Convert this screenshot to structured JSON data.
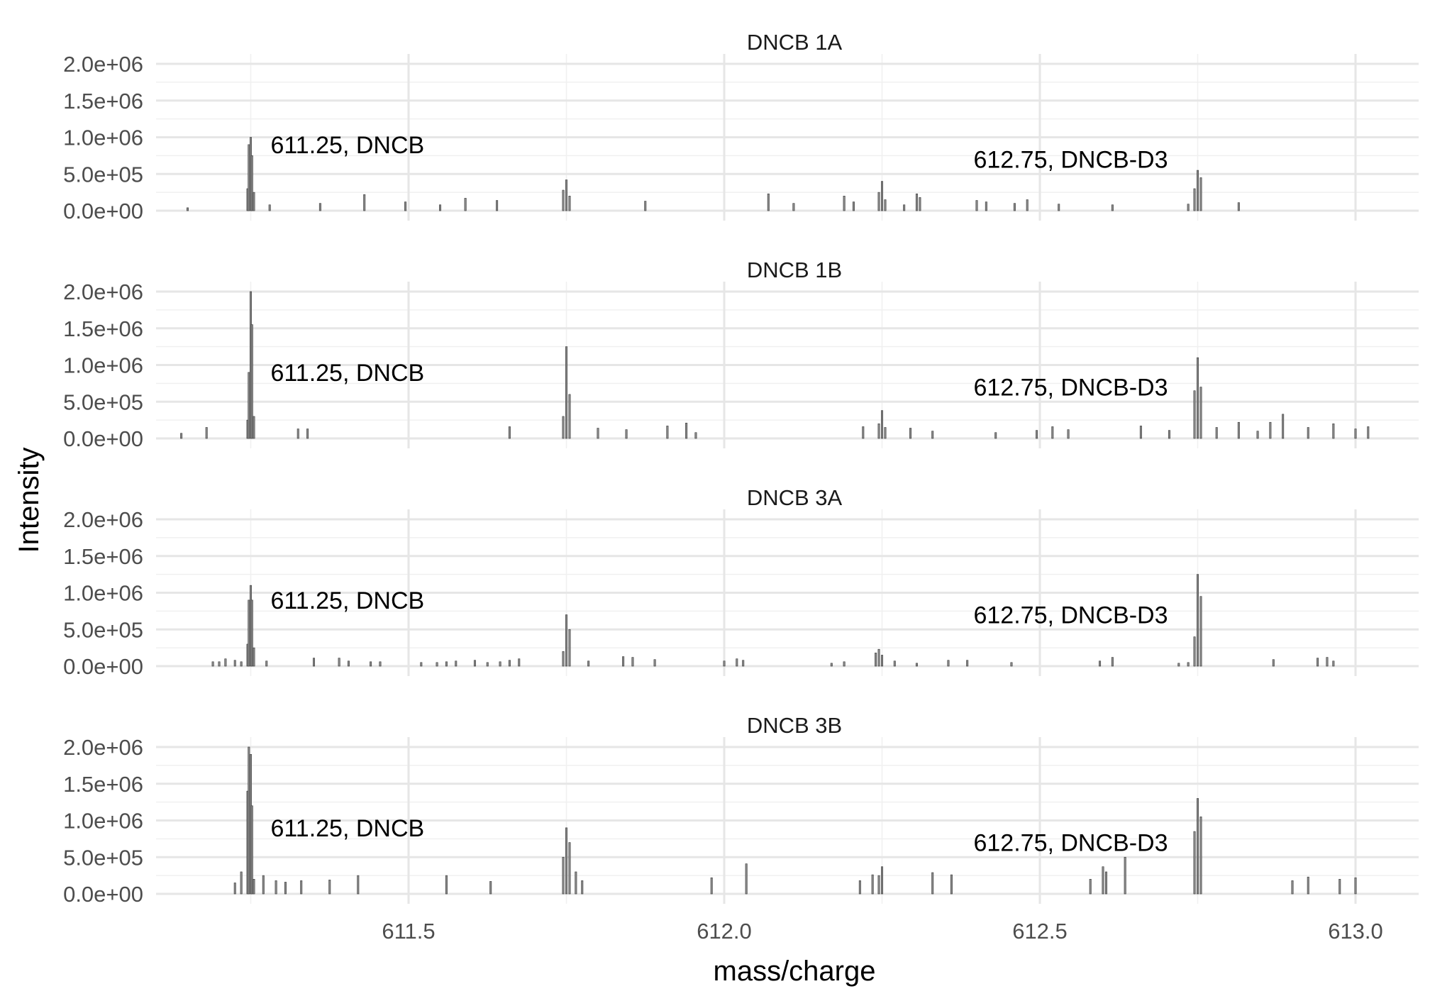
{
  "chart_data": {
    "type": "bar",
    "xlabel": "mass/charge",
    "ylabel": "Intensity",
    "xlim": [
      611.1,
      613.1
    ],
    "ylim": [
      0,
      2000000
    ],
    "x_ticks": [
      611.5,
      612.0,
      612.5,
      613.0
    ],
    "x_tick_labels": [
      "611.5",
      "612.0",
      "612.5",
      "613.0"
    ],
    "y_ticks": [
      0,
      500000,
      1000000,
      1500000,
      2000000
    ],
    "y_tick_labels": [
      "0.0e+00",
      "5.0e+05",
      "1.0e+06",
      "1.5e+06",
      "2.0e+06"
    ],
    "grid": true,
    "annotations": [
      {
        "text": "611.25, DNCB",
        "x": 611.25,
        "y": 900000
      },
      {
        "text": "612.75, DNCB-D3",
        "x": 612.75,
        "y": 700000
      }
    ],
    "panels": [
      {
        "name": "DNCB 1A",
        "x": [
          611.15,
          611.245,
          611.247,
          611.25,
          611.252,
          611.255,
          611.28,
          611.36,
          611.43,
          611.495,
          611.55,
          611.59,
          611.64,
          611.745,
          611.75,
          611.755,
          611.875,
          612.07,
          612.11,
          612.19,
          612.205,
          612.245,
          612.25,
          612.255,
          612.285,
          612.305,
          612.31,
          612.4,
          612.415,
          612.46,
          612.48,
          612.53,
          612.615,
          612.735,
          612.745,
          612.75,
          612.755,
          612.815
        ],
        "values": [
          40000,
          300000,
          900000,
          1000000,
          750000,
          250000,
          80000,
          100000,
          220000,
          120000,
          80000,
          170000,
          140000,
          280000,
          420000,
          200000,
          130000,
          230000,
          100000,
          200000,
          120000,
          250000,
          400000,
          150000,
          80000,
          230000,
          180000,
          140000,
          120000,
          100000,
          150000,
          90000,
          80000,
          90000,
          300000,
          550000,
          450000,
          110000
        ]
      },
      {
        "name": "DNCB 1B",
        "x": [
          611.14,
          611.18,
          611.245,
          611.247,
          611.25,
          611.252,
          611.255,
          611.325,
          611.34,
          611.66,
          611.745,
          611.75,
          611.755,
          611.8,
          611.845,
          611.91,
          611.94,
          611.955,
          612.22,
          612.245,
          612.25,
          612.255,
          612.295,
          612.33,
          612.43,
          612.495,
          612.52,
          612.545,
          612.66,
          612.705,
          612.745,
          612.75,
          612.755,
          612.78,
          612.815,
          612.845,
          612.865,
          612.885,
          612.925,
          612.965,
          613.0,
          613.02
        ],
        "values": [
          70000,
          150000,
          250000,
          900000,
          2000000,
          1550000,
          300000,
          130000,
          130000,
          160000,
          300000,
          1250000,
          600000,
          140000,
          120000,
          170000,
          210000,
          80000,
          160000,
          200000,
          380000,
          150000,
          140000,
          100000,
          80000,
          110000,
          160000,
          120000,
          170000,
          110000,
          650000,
          1100000,
          700000,
          150000,
          220000,
          100000,
          220000,
          330000,
          150000,
          200000,
          130000,
          160000
        ]
      },
      {
        "name": "DNCB 3A",
        "x": [
          611.19,
          611.2,
          611.21,
          611.225,
          611.235,
          611.245,
          611.247,
          611.25,
          611.252,
          611.255,
          611.275,
          611.35,
          611.39,
          611.405,
          611.44,
          611.455,
          611.52,
          611.545,
          611.56,
          611.575,
          611.605,
          611.625,
          611.645,
          611.66,
          611.675,
          611.745,
          611.75,
          611.755,
          611.785,
          611.84,
          611.855,
          611.89,
          612.0,
          612.02,
          612.03,
          612.17,
          612.19,
          612.24,
          612.245,
          612.25,
          612.27,
          612.305,
          612.355,
          612.385,
          612.455,
          612.595,
          612.615,
          612.72,
          612.735,
          612.745,
          612.75,
          612.755,
          612.87,
          612.94,
          612.955,
          612.965
        ],
        "values": [
          60000,
          60000,
          100000,
          80000,
          60000,
          300000,
          900000,
          1100000,
          900000,
          250000,
          70000,
          110000,
          110000,
          70000,
          60000,
          60000,
          50000,
          50000,
          60000,
          70000,
          80000,
          50000,
          60000,
          80000,
          100000,
          200000,
          700000,
          500000,
          70000,
          130000,
          120000,
          90000,
          70000,
          100000,
          80000,
          40000,
          60000,
          180000,
          230000,
          150000,
          70000,
          40000,
          80000,
          80000,
          50000,
          70000,
          120000,
          40000,
          50000,
          400000,
          1250000,
          950000,
          90000,
          110000,
          120000,
          70000
        ]
      },
      {
        "name": "DNCB 3B",
        "x": [
          611.225,
          611.235,
          611.245,
          611.247,
          611.25,
          611.252,
          611.255,
          611.27,
          611.29,
          611.305,
          611.33,
          611.375,
          611.42,
          611.56,
          611.63,
          611.745,
          611.75,
          611.755,
          611.765,
          611.775,
          611.98,
          612.035,
          612.215,
          612.235,
          612.245,
          612.25,
          612.33,
          612.36,
          612.58,
          612.6,
          612.605,
          612.635,
          612.745,
          612.75,
          612.755,
          612.9,
          612.925,
          612.975,
          613.0
        ],
        "values": [
          150000,
          300000,
          1400000,
          2000000,
          1900000,
          1200000,
          200000,
          250000,
          180000,
          160000,
          180000,
          190000,
          250000,
          250000,
          170000,
          500000,
          900000,
          700000,
          300000,
          180000,
          220000,
          410000,
          180000,
          260000,
          250000,
          370000,
          290000,
          260000,
          200000,
          370000,
          300000,
          500000,
          850000,
          1300000,
          1050000,
          180000,
          230000,
          200000,
          220000
        ]
      }
    ]
  }
}
